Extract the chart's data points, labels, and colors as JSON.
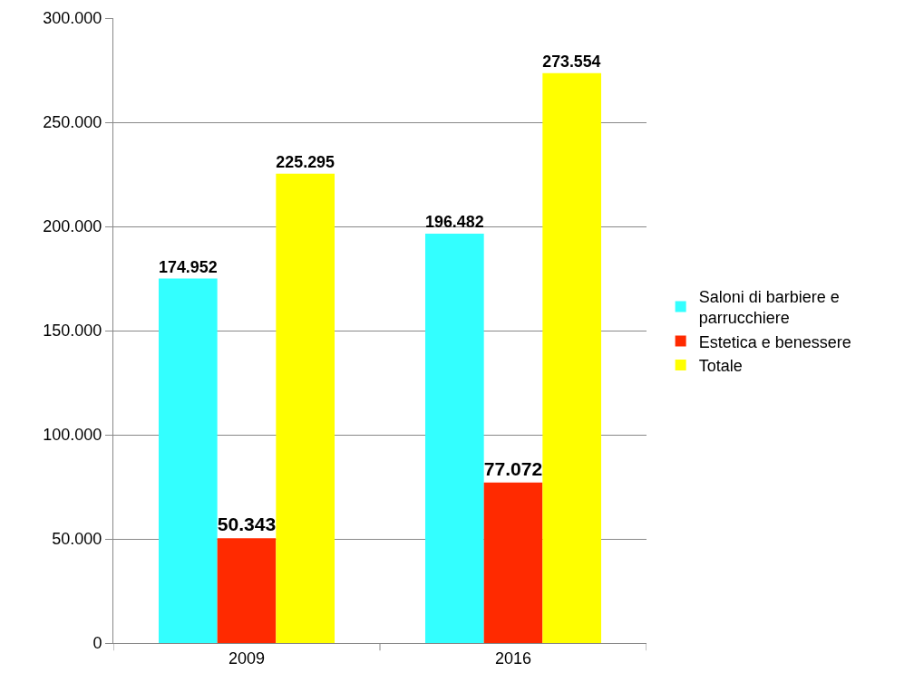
{
  "chart_data": {
    "type": "bar",
    "categories": [
      "2009",
      "2016"
    ],
    "series": [
      {
        "name": "Saloni di barbiere e parrucchiere",
        "color": "#33ffff",
        "values": [
          174952,
          196482
        ],
        "value_labels": [
          "174.952",
          "196.482"
        ]
      },
      {
        "name": "Estetica e benessere",
        "color": "#ff2a00",
        "values": [
          50343,
          77072
        ],
        "value_labels": [
          "50.343",
          "77.072"
        ]
      },
      {
        "name": "Totale",
        "color": "#ffff00",
        "values": [
          225295,
          273554
        ],
        "value_labels": [
          "225.295",
          "273.554"
        ]
      }
    ],
    "ylim": [
      0,
      300000
    ],
    "yticks": [
      0,
      {
        "value": 50000,
        "label": "50.000"
      },
      {
        "value": 100000,
        "label": "100.000"
      },
      {
        "value": 150000,
        "label": "150.000"
      },
      {
        "value": 200000,
        "label": "200.000"
      },
      {
        "value": 250000,
        "label": "250.000"
      },
      {
        "value": 300000,
        "label": "300.000"
      }
    ],
    "grid": "y",
    "legend": "right"
  }
}
